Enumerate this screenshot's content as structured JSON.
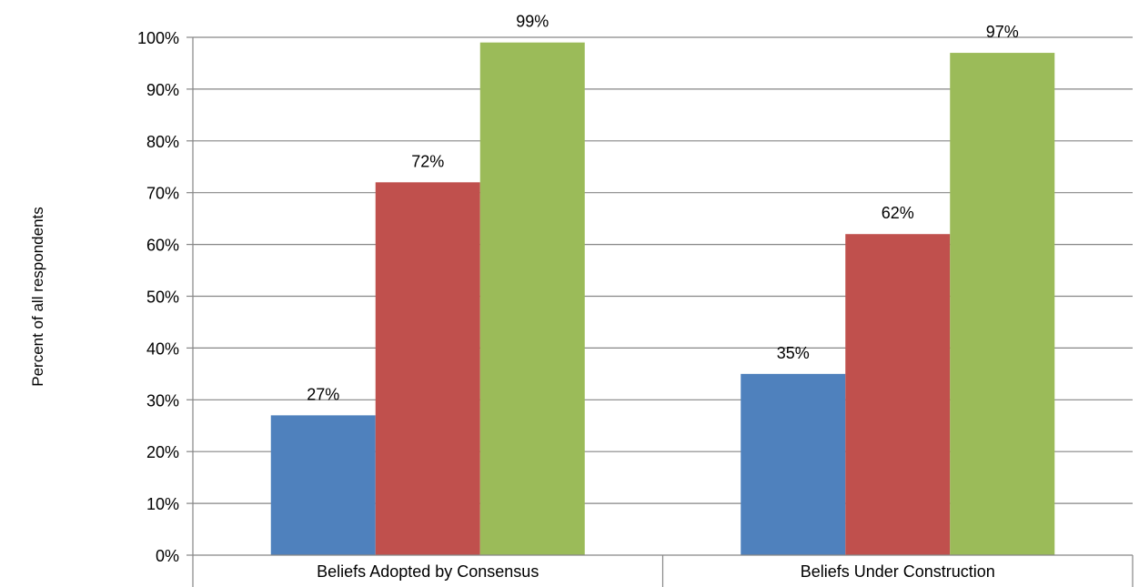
{
  "chart_data": {
    "type": "bar",
    "categories": [
      "Beliefs Adopted by Consensus",
      "Beliefs Under Construction"
    ],
    "series": [
      {
        "color": "#4F81BD",
        "values": [
          27,
          35
        ]
      },
      {
        "color": "#C0504D",
        "values": [
          72,
          62
        ]
      },
      {
        "color": "#9BBB59",
        "values": [
          99,
          97
        ]
      }
    ],
    "data_labels": [
      [
        "27%",
        "35%"
      ],
      [
        "72%",
        "62%"
      ],
      [
        "99%",
        "97%"
      ]
    ],
    "ylabel": "Percent of all respondents",
    "ylim": [
      0,
      100
    ],
    "yticks": [
      0,
      10,
      20,
      30,
      40,
      50,
      60,
      70,
      80,
      90,
      100
    ],
    "ytick_labels": [
      "0%",
      "10%",
      "20%",
      "30%",
      "40%",
      "50%",
      "60%",
      "70%",
      "80%",
      "90%",
      "100%"
    ],
    "grid": true,
    "legend": "none"
  }
}
